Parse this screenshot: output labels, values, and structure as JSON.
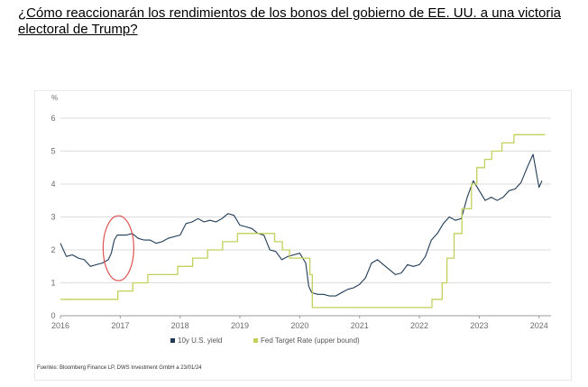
{
  "page": {
    "title": "¿Cómo reaccionarán los rendimientos de los bonos del gobierno de EE. UU. a una victoria electoral de Trump?"
  },
  "chart_data": {
    "type": "line",
    "title": "",
    "unit_label": "%",
    "ylim": [
      0,
      6
    ],
    "yticks": [
      "0",
      "1",
      "2",
      "3",
      "4",
      "5",
      "6"
    ],
    "xlim": [
      2016.0,
      2024.2
    ],
    "xticks": [
      "2016",
      "2017",
      "2018",
      "2019",
      "2020",
      "2021",
      "2022",
      "2023",
      "2024"
    ],
    "grid": true,
    "legend_position": "bottom",
    "series": [
      {
        "name": "10y U.S. yield",
        "color": "#1f3b57",
        "x": [
          2016.0,
          2016.1,
          2016.2,
          2016.3,
          2016.4,
          2016.5,
          2016.6,
          2016.7,
          2016.8,
          2016.85,
          2016.9,
          2016.95,
          2017.0,
          2017.1,
          2017.2,
          2017.3,
          2017.4,
          2017.5,
          2017.6,
          2017.7,
          2017.8,
          2017.9,
          2018.0,
          2018.1,
          2018.2,
          2018.3,
          2018.4,
          2018.5,
          2018.6,
          2018.7,
          2018.8,
          2018.9,
          2019.0,
          2019.1,
          2019.2,
          2019.3,
          2019.4,
          2019.5,
          2019.6,
          2019.7,
          2019.8,
          2019.9,
          2020.0,
          2020.1,
          2020.15,
          2020.2,
          2020.3,
          2020.4,
          2020.5,
          2020.6,
          2020.7,
          2020.8,
          2020.9,
          2021.0,
          2021.1,
          2021.2,
          2021.3,
          2021.4,
          2021.5,
          2021.6,
          2021.7,
          2021.8,
          2021.9,
          2022.0,
          2022.1,
          2022.2,
          2022.3,
          2022.4,
          2022.5,
          2022.6,
          2022.7,
          2022.8,
          2022.9,
          2023.0,
          2023.1,
          2023.2,
          2023.3,
          2023.4,
          2023.5,
          2023.6,
          2023.7,
          2023.8,
          2023.9,
          2024.0,
          2024.05
        ],
        "values": [
          2.2,
          1.8,
          1.85,
          1.75,
          1.7,
          1.5,
          1.55,
          1.6,
          1.7,
          1.9,
          2.3,
          2.45,
          2.45,
          2.45,
          2.5,
          2.35,
          2.3,
          2.3,
          2.2,
          2.25,
          2.35,
          2.4,
          2.45,
          2.8,
          2.85,
          2.95,
          2.85,
          2.9,
          2.85,
          2.95,
          3.1,
          3.05,
          2.75,
          2.7,
          2.65,
          2.5,
          2.45,
          2.0,
          1.95,
          1.7,
          1.8,
          1.85,
          1.9,
          1.6,
          0.9,
          0.7,
          0.65,
          0.65,
          0.6,
          0.6,
          0.7,
          0.8,
          0.85,
          0.95,
          1.15,
          1.6,
          1.7,
          1.55,
          1.4,
          1.25,
          1.3,
          1.55,
          1.5,
          1.55,
          1.8,
          2.3,
          2.5,
          2.8,
          3.0,
          2.9,
          2.95,
          3.6,
          4.1,
          3.8,
          3.5,
          3.6,
          3.5,
          3.6,
          3.8,
          3.85,
          4.05,
          4.5,
          4.9,
          3.9,
          4.1
        ]
      },
      {
        "name": "Fed Target Rate (upper bound)",
        "color": "#c3d15a",
        "step": true,
        "x": [
          2016.0,
          2016.96,
          2017.21,
          2017.46,
          2017.96,
          2018.21,
          2018.46,
          2018.71,
          2018.96,
          2019.58,
          2019.71,
          2019.83,
          2020.17,
          2020.21,
          2022.21,
          2022.38,
          2022.46,
          2022.58,
          2022.71,
          2022.87,
          2022.96,
          2023.09,
          2023.21,
          2023.38,
          2023.58,
          2024.1
        ],
        "values": [
          0.5,
          0.75,
          1.0,
          1.25,
          1.5,
          1.75,
          2.0,
          2.25,
          2.5,
          2.25,
          2.0,
          1.75,
          1.25,
          0.25,
          0.5,
          1.0,
          1.75,
          2.5,
          3.25,
          4.0,
          4.5,
          4.75,
          5.0,
          5.25,
          5.5,
          5.5
        ]
      }
    ],
    "annotations": [
      {
        "type": "ellipse",
        "center_x": 2016.97,
        "center_y": 2.05,
        "color": "#e05353"
      }
    ],
    "source": "Fuentes: Bloomberg Finance LP, DWS Investment GmbH a 23/01/24"
  }
}
